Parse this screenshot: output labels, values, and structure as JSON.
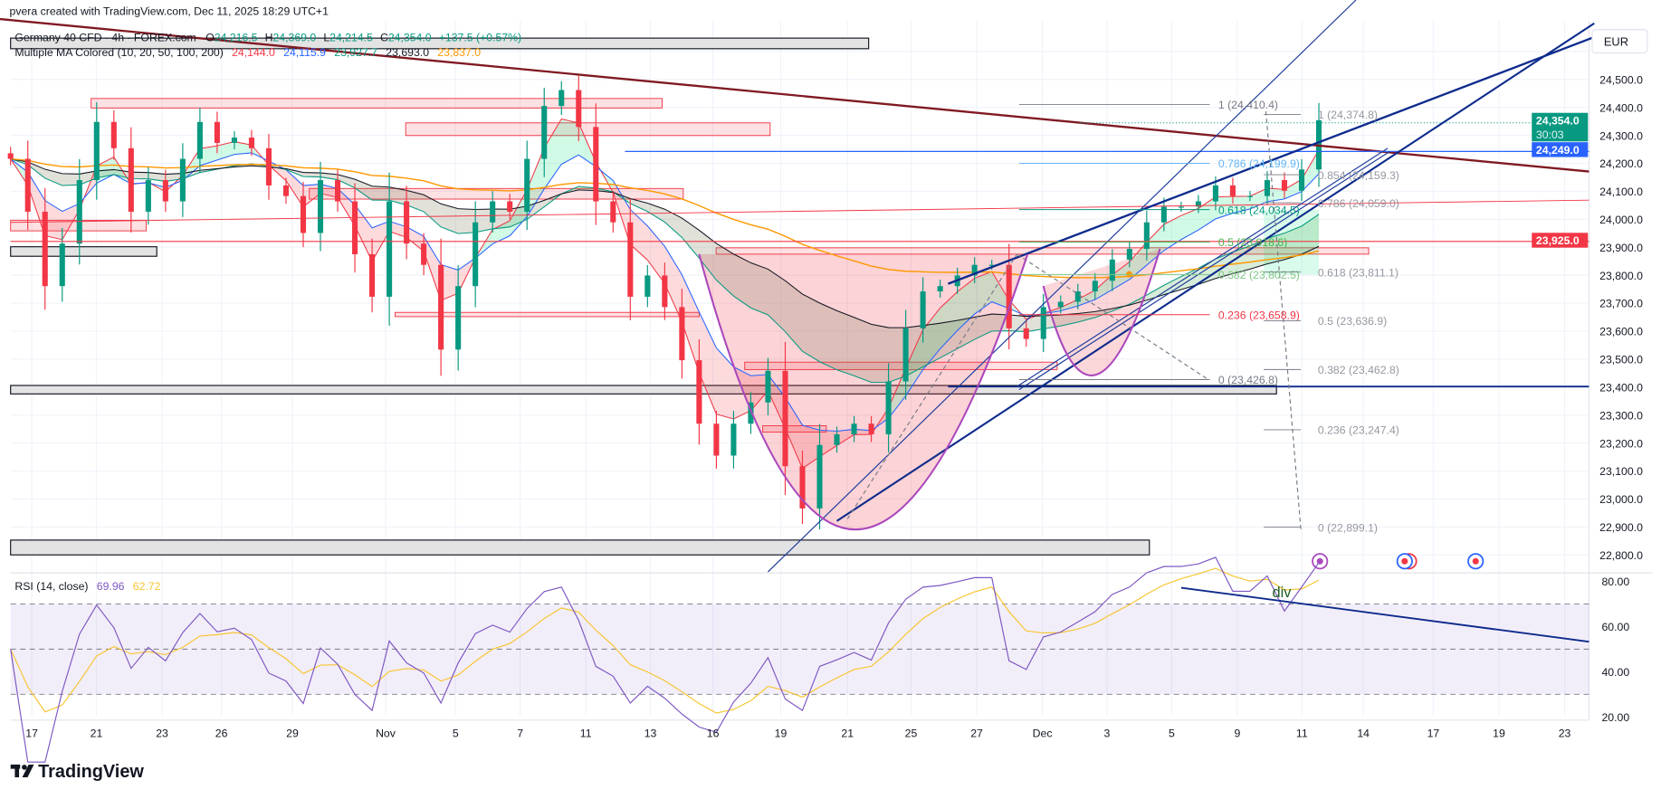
{
  "attribution": "pvera created with TradingView.com, Dec 11, 2025 18:29 UTC+1",
  "legend": {
    "symbol": "Germany 40 CFD · 4h · FOREX.com",
    "o_label": "O",
    "o": "24,216.5",
    "h_label": "H",
    "h": "24,369.0",
    "l_label": "L",
    "l": "24,214.5",
    "c_label": "C",
    "c": "24,354.0",
    "change": "+137.5 (+0.57%)",
    "ma_name": "Multiple MA Colored (10, 20, 50, 100, 200)",
    "ma_values": [
      "24,144.0",
      "24,115.9",
      "23,927.7",
      "23,693.0",
      "23,837.0"
    ],
    "ma_colors": [
      "#f23645",
      "#2962ff",
      "#089981",
      "#131722",
      "#ff9800"
    ]
  },
  "currency": "EUR",
  "rsi_legend": {
    "name": "RSI (14, close)",
    "rsi": "69.96",
    "ma": "62.72",
    "rsi_color": "#7e57c2",
    "ma_color": "#f7c531"
  },
  "div_label": "div",
  "price_badges": [
    {
      "price": 24354.0,
      "label": "24,354.0",
      "sub": "30:03",
      "color": "#089981"
    },
    {
      "price": 24249.0,
      "label": "24,249.0",
      "color": "#2962ff"
    },
    {
      "price": 23925.0,
      "label": "23,925.0",
      "color": "#f23645"
    }
  ],
  "fib_left": [
    {
      "text": "1 (24,410.4)",
      "price": 24410.4,
      "color": "#787b86"
    },
    {
      "text": "0.786 (24,199.9)",
      "price": 24199.9,
      "color": "#64b5f6"
    },
    {
      "text": "0.618 (24,034.5)",
      "price": 24034.5,
      "color": "#089981"
    },
    {
      "text": "0.5 (23,918.6)",
      "price": 23918.6,
      "color": "#4caf50"
    },
    {
      "text": "0.382 (23,802.5)",
      "price": 23802.5,
      "color": "#81c784"
    },
    {
      "text": "0.236 (23,658.9)",
      "price": 23658.9,
      "color": "#f23645"
    },
    {
      "text": "0 (23,426.8)",
      "price": 23426.8,
      "color": "#787b86"
    }
  ],
  "fib_right": [
    {
      "text": "1 (24,374.8)",
      "price": 24374.8
    },
    {
      "text": "0.854 (24,159.3)",
      "price": 24159.3
    },
    {
      "text": "0.786 (24,059.0)",
      "price": 24059.0
    },
    {
      "text": "0.618 (23,811.1)",
      "price": 23811.1
    },
    {
      "text": "0.5 (23,636.9)",
      "price": 23636.9
    },
    {
      "text": "0.382 (23,462.8)",
      "price": 23462.8
    },
    {
      "text": "0.236 (23,247.4)",
      "price": 23247.4
    },
    {
      "text": "0 (22,899.1)",
      "price": 22899.1
    }
  ],
  "icons": [
    "lightning-event-icon",
    "economic-event-icon",
    "economic-event-icon"
  ],
  "brand": "TradingView",
  "chart_data": {
    "type": "candlestick",
    "symbol": "Germany 40 CFD",
    "interval": "4h",
    "price_axis": {
      "ticks": [
        "24,500.0",
        "24,400.0",
        "24,300.0",
        "24,200.0",
        "24,100.0",
        "24,000.0",
        "23,900.0",
        "23,800.0",
        "23,700.0",
        "23,600.0",
        "23,500.0",
        "23,400.0",
        "23,300.0",
        "23,200.0",
        "23,100.0",
        "23,000.0",
        "22,900.0",
        "22,800.0"
      ],
      "range": [
        22750,
        24650
      ]
    },
    "rsi_axis": {
      "ticks": [
        "80.00",
        "60.00",
        "40.00",
        "20.00"
      ],
      "range": [
        20,
        80
      ],
      "bands": [
        30,
        70
      ]
    },
    "x_ticks": [
      "17",
      "21",
      "23",
      "26",
      "29",
      "Nov",
      "5",
      "7",
      "11",
      "13",
      "16",
      "19",
      "21",
      "25",
      "27",
      "Dec",
      "3",
      "5",
      "9",
      "11",
      "14",
      "17",
      "19",
      "23"
    ],
    "closes": [
      24216,
      24027,
      23761,
      23913,
      24140,
      24348,
      24254,
      24027,
      24140,
      24064,
      24216,
      24348,
      24273,
      24292,
      24254,
      24121,
      24083,
      23951,
      24140,
      24064,
      23875,
      23723,
      24064,
      23913,
      23837,
      23534,
      23761,
      23989,
      24064,
      24027,
      24216,
      24405,
      24462,
      24330,
      24064,
      23989,
      23723,
      23799,
      23686,
      23496,
      23269,
      23155,
      23269,
      23345,
      23458,
      23117,
      22966,
      23193,
      23231,
      23269,
      23231,
      23420,
      23610,
      23742,
      23761,
      23799,
      23837,
      23837,
      23610,
      23572,
      23686,
      23705,
      23742,
      23780,
      23856,
      23894,
      23989,
      24045,
      24045,
      24064,
      24121,
      24083,
      24083,
      24140,
      24102,
      24178,
      24354
    ],
    "grid": true
  }
}
